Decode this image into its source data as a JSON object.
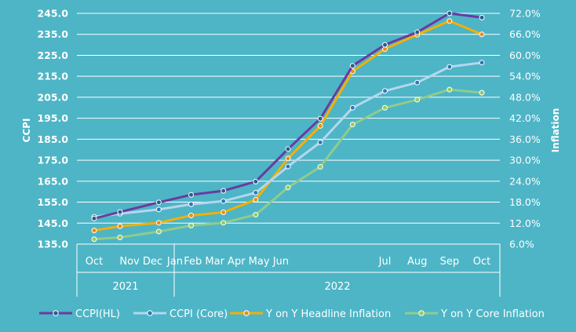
{
  "chart_data": {
    "type": "line",
    "title": "",
    "background_color": "#4db5c6",
    "grid": {
      "horizontal": true,
      "vertical": false
    },
    "legend_position": "bottom",
    "y_left": {
      "label": "CCPI",
      "range": [
        135,
        245
      ],
      "ticks": [
        "135.0",
        "145.0",
        "155.0",
        "165.0",
        "175.0",
        "185.0",
        "195.0",
        "205.0",
        "215.0",
        "225.0",
        "235.0",
        "245.0"
      ]
    },
    "y_right": {
      "label": "Inflation",
      "range": [
        6,
        72
      ],
      "ticks": [
        "6.0%",
        "12.0%",
        "18.0%",
        "24.0%",
        "30.0%",
        "36.0%",
        "42.0%",
        "48.0%",
        "54.0%",
        "60.0%",
        "66.0%",
        "72.0%"
      ]
    },
    "x_axis": {
      "months": [
        "Oct",
        "Nov",
        "Dec",
        "Jan",
        "Feb",
        "Mar",
        "Apr",
        "May",
        "Jun",
        "Jul",
        "Aug",
        "Sep",
        "Oct"
      ],
      "tick_labels": [
        {
          "text": "Oct",
          "at": 0
        },
        {
          "text": "Nov Dec",
          "at": 1.45
        },
        {
          "text": "Jan",
          "at": 2.5
        },
        {
          "text": "Feb Mar Apr May Jun",
          "at": 4.4
        },
        {
          "text": "Jul",
          "at": 9
        },
        {
          "text": "Aug",
          "at": 10
        },
        {
          "text": "Sep",
          "at": 11
        },
        {
          "text": "Oct",
          "at": 12
        }
      ],
      "years": [
        {
          "label": "2021",
          "from": 0,
          "to": 2
        },
        {
          "label": "2022",
          "from": 3,
          "to": 12
        }
      ]
    },
    "x": [
      0,
      0.8,
      2,
      3,
      4,
      5,
      6,
      7,
      8,
      9,
      10,
      11,
      12
    ],
    "series": [
      {
        "name": "CCPI(HL)",
        "axis": "left",
        "color": "#6b3aa0",
        "marker_fill": "#2a5d8a",
        "values": [
          147.2,
          150.3,
          154.9,
          158.5,
          160.4,
          164.8,
          180.3,
          194.8,
          220.0,
          230.0,
          236.0,
          245.0,
          243.0
        ]
      },
      {
        "name": "CCPI (Core)",
        "axis": "left",
        "color": "#b4d7ee",
        "marker_fill": "#2a7bbd",
        "values": [
          148.0,
          149.5,
          151.5,
          154.0,
          155.5,
          159.5,
          172.0,
          183.5,
          200.0,
          208.0,
          212.0,
          219.5,
          221.5
        ]
      },
      {
        "name": "Y on Y Headline Inflation",
        "axis": "right",
        "color": "#f4b000",
        "marker_fill": "#f08c10",
        "values": [
          9.9,
          11.1,
          12.1,
          14.2,
          15.1,
          18.7,
          30.5,
          39.8,
          55.4,
          61.8,
          65.9,
          69.8,
          66.0
        ]
      },
      {
        "name": "Y on Y Core Inflation",
        "axis": "right",
        "color": "#8fcc8c",
        "marker_fill": "#9ac964",
        "values": [
          7.4,
          7.9,
          9.6,
          11.3,
          12.1,
          14.4,
          22.2,
          28.1,
          40.2,
          45.0,
          47.3,
          50.2,
          49.3
        ]
      }
    ]
  }
}
